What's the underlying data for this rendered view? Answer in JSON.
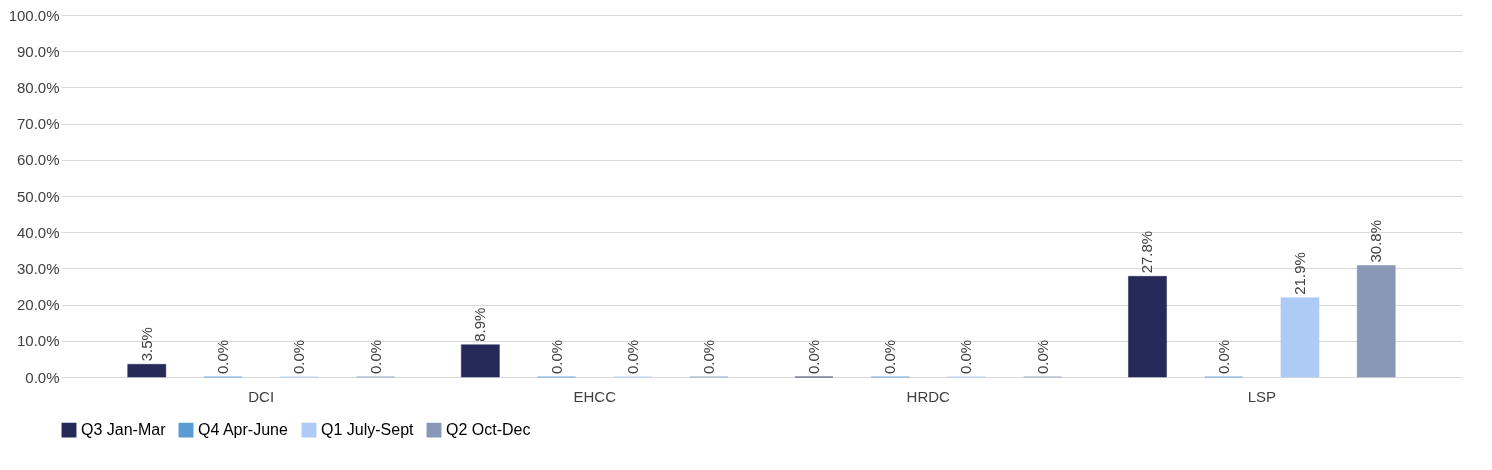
{
  "chart_data": {
    "type": "bar",
    "categories": [
      "DCI",
      "EHCC",
      "HRDC",
      "LSP"
    ],
    "series": [
      {
        "name": "Q3 Jan-Mar",
        "color": "#262a59",
        "values": [
          3.5,
          8.9,
          0.0,
          27.8
        ],
        "value_labels": [
          "3.5%",
          "8.9%",
          "0.0%",
          "27.8%"
        ]
      },
      {
        "name": "Q4 Apr-June",
        "color": "#5b9bd5",
        "values": [
          0.0,
          0.0,
          0.0,
          0.0
        ],
        "value_labels": [
          "0.0%",
          "0.0%",
          "0.0%",
          "0.0%"
        ]
      },
      {
        "name": "Q1 July-Sept",
        "color": "#aecbf5",
        "values": [
          0.0,
          0.0,
          0.0,
          21.9
        ],
        "value_labels": [
          "0.0%",
          "0.0%",
          "0.0%",
          "21.9%"
        ]
      },
      {
        "name": "Q2 Oct-Dec",
        "color": "#8a98b8",
        "values": [
          0.0,
          0.0,
          0.0,
          30.8
        ],
        "value_labels": [
          "0.0%",
          "0.0%",
          "0.0%",
          "30.8%"
        ]
      }
    ],
    "ylim": [
      0,
      100
    ],
    "yticks": [
      {
        "value": 0,
        "label": "0.0%"
      },
      {
        "value": 10,
        "label": "10.0%"
      },
      {
        "value": 20,
        "label": "20.0%"
      },
      {
        "value": 30,
        "label": "30.0%"
      },
      {
        "value": 40,
        "label": "40.0%"
      },
      {
        "value": 50,
        "label": "50.0%"
      },
      {
        "value": 60,
        "label": "60.0%"
      },
      {
        "value": 70,
        "label": "70.0%"
      },
      {
        "value": 80,
        "label": "80.0%"
      },
      {
        "value": 90,
        "label": "90.0%"
      },
      {
        "value": 100,
        "label": "100.0%"
      }
    ],
    "grid": "y",
    "legend": "bottom"
  }
}
